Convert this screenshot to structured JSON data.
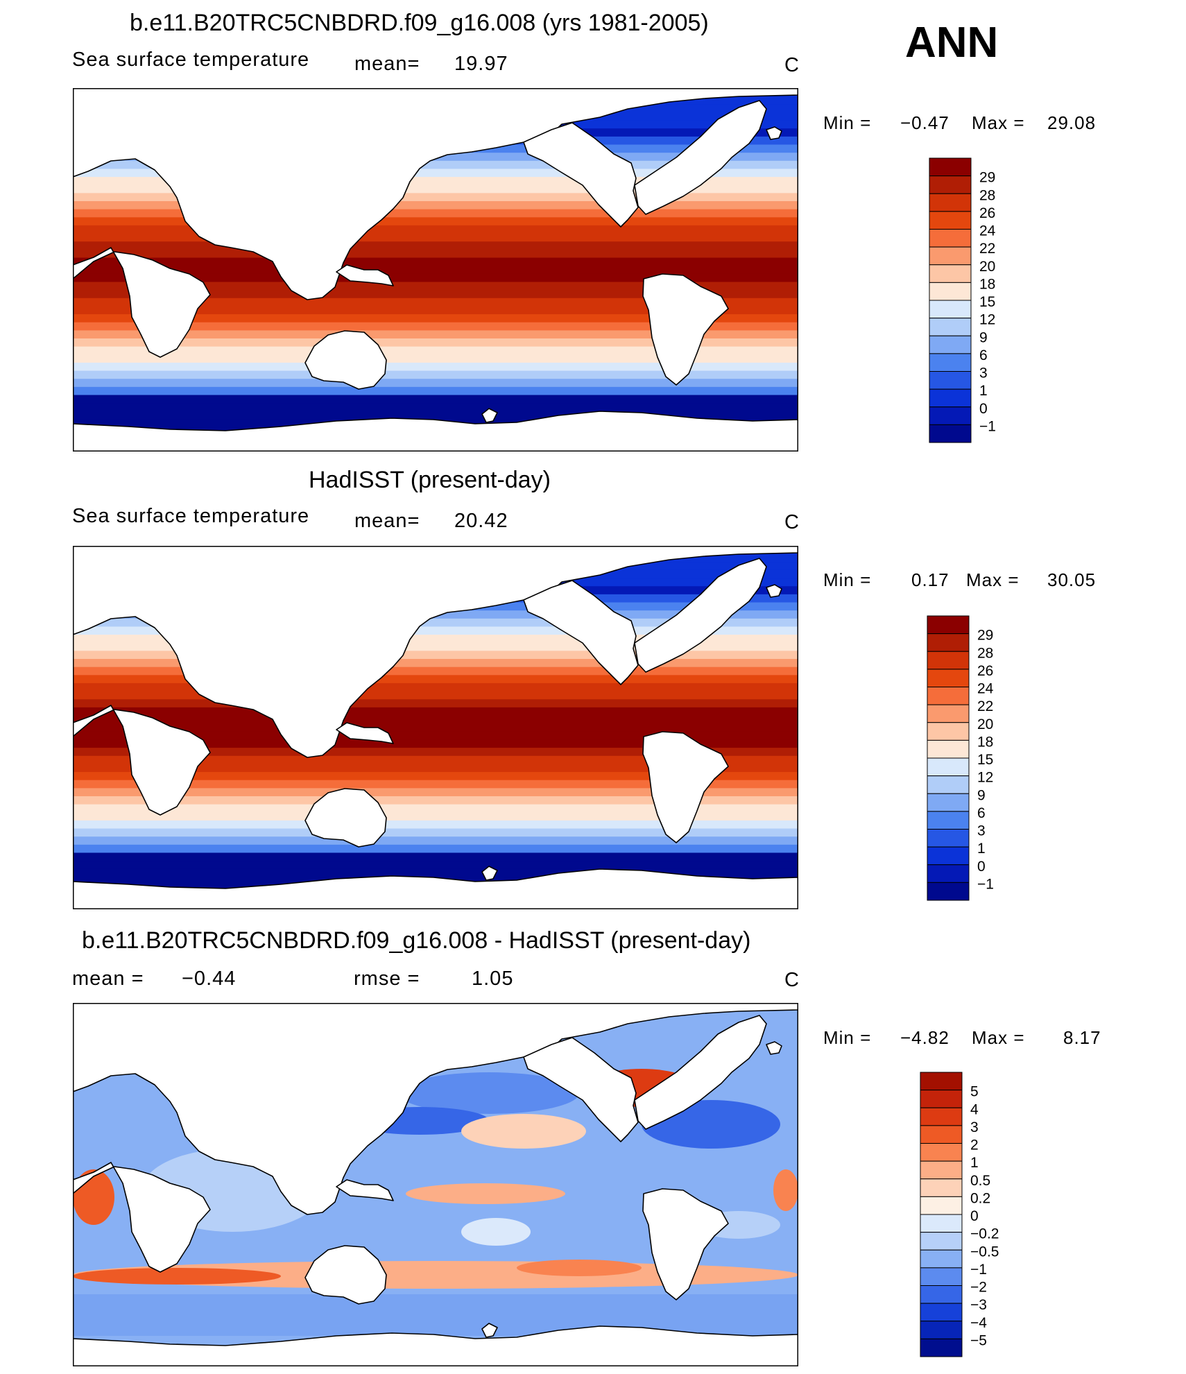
{
  "header": {
    "season": "ANN"
  },
  "panels": [
    {
      "title": "b.e11.B20TRC5CNBDRD.f09_g16.008 (yrs 1981-2005)",
      "variable": "Sea surface temperature",
      "stat1_label": "mean=",
      "stat1_value": "19.97",
      "stat2_label": "",
      "stat2_value": "",
      "units": "C",
      "min_label": "Min =",
      "min_value": "−0.47",
      "max_label": "Max =",
      "max_value": "29.08",
      "colorbar": {
        "labels": [
          "29",
          "28",
          "26",
          "24",
          "22",
          "20",
          "18",
          "15",
          "12",
          "9",
          "6",
          "3",
          "1",
          "0",
          "−1"
        ],
        "colors": [
          "#8b0000",
          "#b01e05",
          "#d23408",
          "#e4470e",
          "#f56d3a",
          "#fa9a6e",
          "#fdc6a6",
          "#fde7d6",
          "#d8e8fb",
          "#b0cdf8",
          "#7fa9f4",
          "#4b82ef",
          "#2657e4",
          "#0b33d8",
          "#0419b6",
          "#00098e"
        ]
      },
      "map_type": "sst"
    },
    {
      "title": "HadISST (present-day)",
      "variable": "Sea surface temperature",
      "stat1_label": "mean=",
      "stat1_value": "20.42",
      "stat2_label": "",
      "stat2_value": "",
      "units": "C",
      "min_label": "Min =",
      "min_value": "0.17",
      "max_label": "Max =",
      "max_value": "30.05",
      "colorbar": {
        "labels": [
          "29",
          "28",
          "26",
          "24",
          "22",
          "20",
          "18",
          "15",
          "12",
          "9",
          "6",
          "3",
          "1",
          "0",
          "−1"
        ],
        "colors": [
          "#8b0000",
          "#b01e05",
          "#d23408",
          "#e4470e",
          "#f56d3a",
          "#fa9a6e",
          "#fdc6a6",
          "#fde7d6",
          "#d8e8fb",
          "#b0cdf8",
          "#7fa9f4",
          "#4b82ef",
          "#2657e4",
          "#0b33d8",
          "#0419b6",
          "#00098e"
        ]
      },
      "map_type": "sst2"
    },
    {
      "title": "b.e11.B20TRC5CNBDRD.f09_g16.008 - HadISST (present-day)",
      "variable": "",
      "stat1_label": "mean =",
      "stat1_value": "−0.44",
      "stat2_label": "rmse =",
      "stat2_value": "1.05",
      "units": "C",
      "min_label": "Min =",
      "min_value": "−4.82",
      "max_label": "Max =",
      "max_value": "8.17",
      "colorbar": {
        "labels": [
          "5",
          "4",
          "3",
          "2",
          "1",
          "0.5",
          "0.2",
          "0",
          "−0.2",
          "−0.5",
          "−1",
          "−2",
          "−3",
          "−4",
          "−5"
        ],
        "colors": [
          "#a31000",
          "#c4230a",
          "#dd3b12",
          "#ee5a25",
          "#f98350",
          "#fcae87",
          "#fdd2b8",
          "#fdf0e4",
          "#dbe9fb",
          "#b6d0f8",
          "#88b0f4",
          "#5c8bef",
          "#3666e7",
          "#1641d9",
          "#0725b8",
          "#000e8e"
        ]
      },
      "map_type": "diff"
    }
  ]
}
